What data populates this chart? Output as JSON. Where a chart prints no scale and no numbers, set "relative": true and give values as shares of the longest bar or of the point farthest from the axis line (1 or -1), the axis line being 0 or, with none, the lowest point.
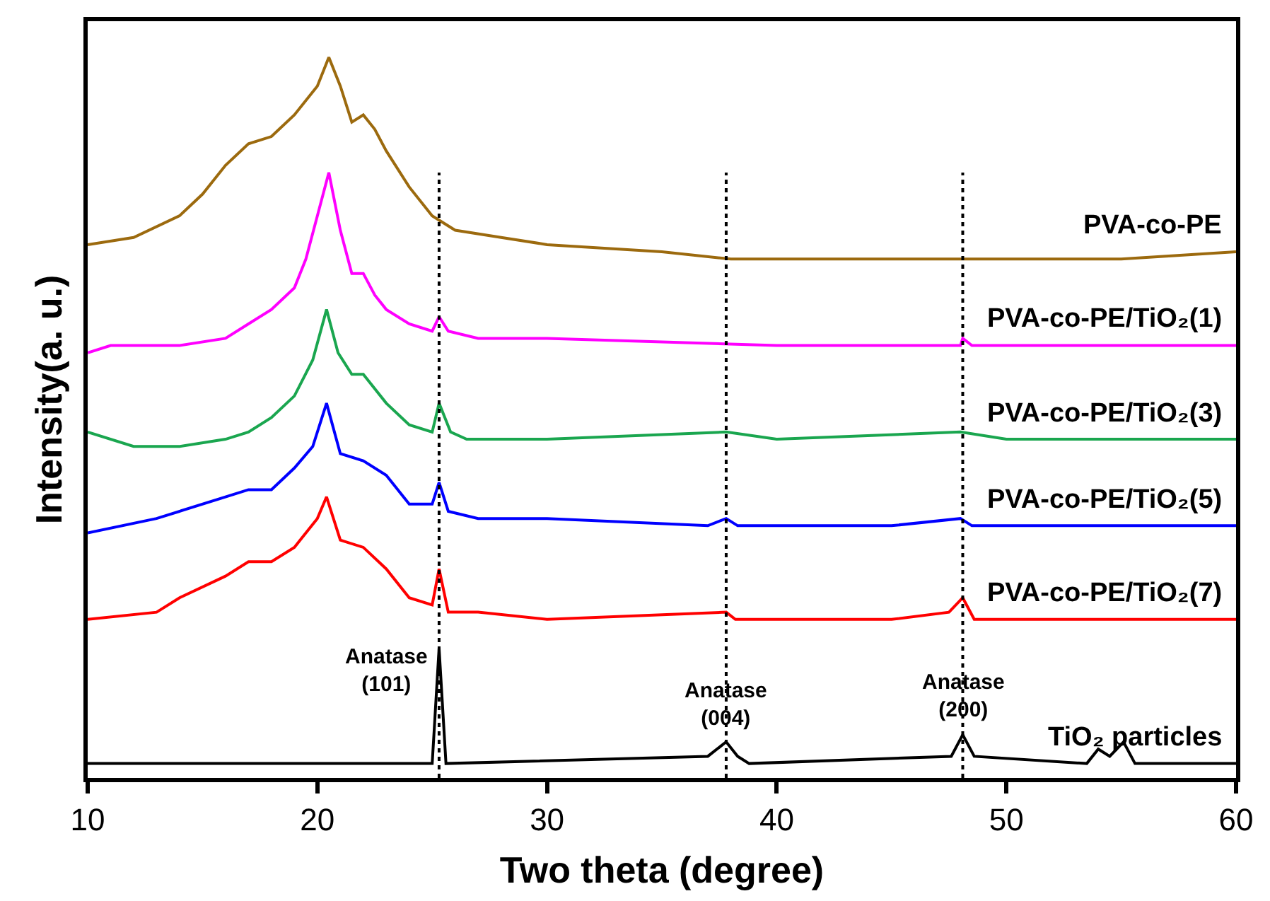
{
  "chart_data": {
    "type": "line",
    "relative": true,
    "xlabel": "Two theta (degree)",
    "ylabel": "Intensity(a. u.)",
    "xlim": [
      10,
      60
    ],
    "xticks": [
      10,
      20,
      30,
      40,
      50,
      60
    ],
    "legend": false,
    "marker": "none",
    "line_style": "solid",
    "series": [
      {
        "name": "PVA-co-PE",
        "color": "#9c6a0e",
        "x": [
          10,
          12,
          14,
          15,
          16,
          17,
          18,
          19,
          20,
          20.5,
          21,
          21.5,
          22,
          22.5,
          23,
          24,
          25,
          26,
          28,
          30,
          35,
          38,
          42,
          46,
          50,
          55,
          60
        ],
        "values": [
          0.74,
          0.75,
          0.78,
          0.81,
          0.85,
          0.88,
          0.89,
          0.92,
          0.96,
          1.0,
          0.96,
          0.91,
          0.92,
          0.9,
          0.87,
          0.82,
          0.78,
          0.76,
          0.75,
          0.74,
          0.73,
          0.72,
          0.72,
          0.72,
          0.72,
          0.72,
          0.73
        ]
      },
      {
        "name": "PVA-co-PE/TiO₂(1)",
        "color": "#ff00ff",
        "x": [
          10,
          11,
          14,
          16,
          17,
          18,
          19,
          19.5,
          20,
          20.5,
          21,
          21.5,
          22,
          22.5,
          23,
          24,
          25,
          25.3,
          25.7,
          27,
          30,
          40,
          48,
          48.1,
          48.5,
          60
        ],
        "values": [
          0.59,
          0.6,
          0.6,
          0.61,
          0.63,
          0.65,
          0.68,
          0.72,
          0.78,
          0.84,
          0.76,
          0.7,
          0.7,
          0.67,
          0.65,
          0.63,
          0.62,
          0.64,
          0.62,
          0.61,
          0.61,
          0.6,
          0.6,
          0.61,
          0.6,
          0.6
        ]
      },
      {
        "name": "PVA-co-PE/TiO₂(3)",
        "color": "#1aa64f",
        "x": [
          10,
          12,
          14,
          16,
          17,
          18,
          19,
          19.8,
          20.4,
          20.9,
          21.5,
          22,
          23,
          24,
          25,
          25.3,
          25.8,
          26.5,
          30,
          37.8,
          40,
          48,
          50,
          60
        ],
        "values": [
          0.48,
          0.46,
          0.46,
          0.47,
          0.48,
          0.5,
          0.53,
          0.58,
          0.65,
          0.59,
          0.56,
          0.56,
          0.52,
          0.49,
          0.48,
          0.52,
          0.48,
          0.47,
          0.47,
          0.48,
          0.47,
          0.48,
          0.47,
          0.47
        ]
      },
      {
        "name": "PVA-co-PE/TiO₂(5)",
        "color": "#0000ff",
        "x": [
          10,
          13,
          16,
          17,
          18,
          19,
          19.8,
          20.4,
          21,
          22,
          23,
          24,
          25,
          25.3,
          25.7,
          27,
          30,
          37,
          37.8,
          38.3,
          45,
          48,
          48.5,
          60
        ],
        "values": [
          0.34,
          0.36,
          0.39,
          0.4,
          0.4,
          0.43,
          0.46,
          0.52,
          0.45,
          0.44,
          0.42,
          0.38,
          0.38,
          0.41,
          0.37,
          0.36,
          0.36,
          0.35,
          0.36,
          0.35,
          0.35,
          0.36,
          0.35,
          0.35
        ]
      },
      {
        "name": "PVA-co-PE/TiO₂(7)",
        "color": "#ff0000",
        "x": [
          10,
          13,
          14,
          16,
          17,
          18,
          19,
          20,
          20.4,
          21,
          22,
          23,
          24,
          25,
          25.3,
          25.7,
          27,
          30,
          37.8,
          38.2,
          45,
          47.5,
          48.1,
          48.6,
          60
        ],
        "values": [
          0.22,
          0.23,
          0.25,
          0.28,
          0.3,
          0.3,
          0.32,
          0.36,
          0.39,
          0.33,
          0.32,
          0.29,
          0.25,
          0.24,
          0.29,
          0.23,
          0.23,
          0.22,
          0.23,
          0.22,
          0.22,
          0.23,
          0.25,
          0.22,
          0.22
        ]
      },
      {
        "name": "TiO₂ particles",
        "color": "#000000",
        "x": [
          10,
          25,
          25.3,
          25.6,
          37,
          37.8,
          38.3,
          38.8,
          47.6,
          48.1,
          48.6,
          53.5,
          54,
          54.5,
          55.1,
          55.6,
          60
        ],
        "values": [
          0.02,
          0.02,
          0.18,
          0.02,
          0.03,
          0.05,
          0.03,
          0.02,
          0.03,
          0.06,
          0.03,
          0.02,
          0.04,
          0.03,
          0.05,
          0.02,
          0.02
        ]
      }
    ],
    "ref_lines": [
      {
        "axis": "x",
        "value": 25.3,
        "color": "#000000",
        "line_style": "dotted"
      },
      {
        "axis": "x",
        "value": 37.8,
        "color": "#000000",
        "line_style": "dotted"
      },
      {
        "axis": "x",
        "value": 48.1,
        "color": "#000000",
        "line_style": "dotted"
      }
    ],
    "annotations": [
      {
        "text": "Anatase\n(101)",
        "x": 25.3,
        "y": 0.18
      },
      {
        "text": "Anatase\n(004)",
        "x": 37.8,
        "y": 0.05
      },
      {
        "text": "Anatase\n(200)",
        "x": 48.1,
        "y": 0.06
      }
    ]
  }
}
